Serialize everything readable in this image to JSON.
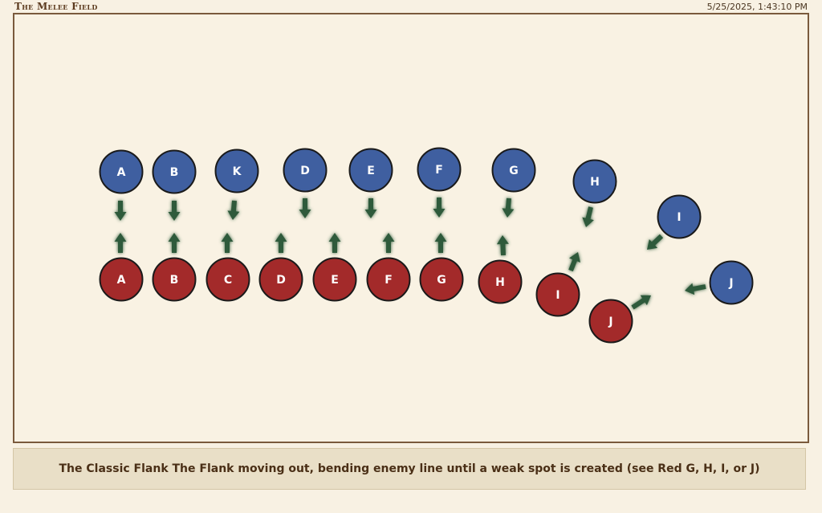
{
  "header": {
    "title": "The Melee Field",
    "timestamp": "5/25/2025, 1:43:10 PM"
  },
  "colors": {
    "blue": "#3f5fa0",
    "red": "#a32a2a",
    "arrow": "#2f5a3a",
    "border": "#7a5a3c"
  },
  "icons": {
    "arrow": "arrow-icon",
    "unit": "circle-token-icon"
  },
  "units": {
    "blue": [
      "A",
      "B",
      "K",
      "D",
      "E",
      "F",
      "G",
      "H",
      "I",
      "J"
    ],
    "red": [
      "A",
      "B",
      "C",
      "D",
      "E",
      "F",
      "G",
      "H",
      "I",
      "J"
    ]
  },
  "caption": "The Classic Flank The Flank moving out, bending enemy line until a weak spot is created (see Red G, H, I, or J)"
}
